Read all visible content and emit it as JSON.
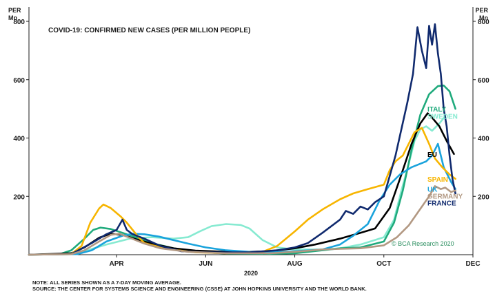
{
  "chart_data": {
    "type": "line",
    "title": "COVID-19: CONFIRMED NEW CASES (PER MILLION PEOPLE)",
    "xlabel": "2020",
    "y_unit_left": [
      "PER",
      "Mn"
    ],
    "y_unit_right": [
      "PER",
      "Mn"
    ],
    "ylim": [
      0,
      800
    ],
    "yticks": [
      200,
      400,
      600,
      800
    ],
    "xlim": [
      "2020-02-01",
      "2020-12-01"
    ],
    "xticks": [
      {
        "date": "2020-04-01",
        "label": "APR"
      },
      {
        "date": "2020-06-01",
        "label": "JUN"
      },
      {
        "date": "2020-08-01",
        "label": "AUG"
      },
      {
        "date": "2020-10-01",
        "label": "OCT"
      },
      {
        "date": "2020-12-01",
        "label": "DEC"
      }
    ],
    "grid": false,
    "legend": "right",
    "credit": "© BCA Research 2020",
    "series": [
      {
        "name": "SWEDEN",
        "color": "#86ead1",
        "points": [
          [
            "2020-02-01",
            0
          ],
          [
            "2020-02-25",
            3
          ],
          [
            "2020-03-10",
            12
          ],
          [
            "2020-03-25",
            35
          ],
          [
            "2020-04-10",
            55
          ],
          [
            "2020-04-25",
            60
          ],
          [
            "2020-05-10",
            55
          ],
          [
            "2020-05-20",
            60
          ],
          [
            "2020-05-28",
            80
          ],
          [
            "2020-06-05",
            98
          ],
          [
            "2020-06-15",
            105
          ],
          [
            "2020-06-25",
            102
          ],
          [
            "2020-07-01",
            90
          ],
          [
            "2020-07-10",
            50
          ],
          [
            "2020-07-20",
            25
          ],
          [
            "2020-08-01",
            18
          ],
          [
            "2020-08-20",
            18
          ],
          [
            "2020-09-01",
            22
          ],
          [
            "2020-09-15",
            35
          ],
          [
            "2020-10-01",
            60
          ],
          [
            "2020-10-08",
            120
          ],
          [
            "2020-10-13",
            220
          ],
          [
            "2020-10-18",
            310
          ],
          [
            "2020-10-22",
            390
          ],
          [
            "2020-10-26",
            430
          ],
          [
            "2020-10-30",
            440
          ],
          [
            "2020-11-03",
            425
          ],
          [
            "2020-11-08",
            450
          ],
          [
            "2020-11-12",
            475
          ]
        ]
      },
      {
        "name": "ITALY",
        "color": "#1faa7c",
        "points": [
          [
            "2020-02-01",
            0
          ],
          [
            "2020-02-22",
            2
          ],
          [
            "2020-03-01",
            15
          ],
          [
            "2020-03-10",
            55
          ],
          [
            "2020-03-16",
            85
          ],
          [
            "2020-03-21",
            93
          ],
          [
            "2020-03-28",
            88
          ],
          [
            "2020-04-05",
            75
          ],
          [
            "2020-04-15",
            58
          ],
          [
            "2020-04-25",
            40
          ],
          [
            "2020-05-10",
            22
          ],
          [
            "2020-05-25",
            10
          ],
          [
            "2020-06-15",
            4
          ],
          [
            "2020-07-15",
            3
          ],
          [
            "2020-08-01",
            5
          ],
          [
            "2020-08-20",
            15
          ],
          [
            "2020-09-01",
            22
          ],
          [
            "2020-09-15",
            25
          ],
          [
            "2020-10-01",
            45
          ],
          [
            "2020-10-08",
            110
          ],
          [
            "2020-10-14",
            220
          ],
          [
            "2020-10-20",
            360
          ],
          [
            "2020-10-26",
            480
          ],
          [
            "2020-11-01",
            550
          ],
          [
            "2020-11-07",
            578
          ],
          [
            "2020-11-11",
            580
          ],
          [
            "2020-11-15",
            560
          ],
          [
            "2020-11-19",
            500
          ]
        ]
      },
      {
        "name": "EU",
        "color": "#000000",
        "points": [
          [
            "2020-02-01",
            0
          ],
          [
            "2020-03-01",
            5
          ],
          [
            "2020-03-10",
            25
          ],
          [
            "2020-03-20",
            58
          ],
          [
            "2020-03-28",
            72
          ],
          [
            "2020-04-05",
            68
          ],
          [
            "2020-04-15",
            52
          ],
          [
            "2020-04-25",
            38
          ],
          [
            "2020-05-10",
            22
          ],
          [
            "2020-05-25",
            14
          ],
          [
            "2020-06-15",
            10
          ],
          [
            "2020-07-01",
            10
          ],
          [
            "2020-07-15",
            12
          ],
          [
            "2020-08-01",
            22
          ],
          [
            "2020-08-15",
            35
          ],
          [
            "2020-09-01",
            55
          ],
          [
            "2020-09-15",
            75
          ],
          [
            "2020-09-25",
            90
          ],
          [
            "2020-10-05",
            160
          ],
          [
            "2020-10-12",
            260
          ],
          [
            "2020-10-20",
            380
          ],
          [
            "2020-10-26",
            450
          ],
          [
            "2020-10-31",
            485
          ],
          [
            "2020-11-03",
            470
          ],
          [
            "2020-11-08",
            440
          ],
          [
            "2020-11-13",
            390
          ],
          [
            "2020-11-18",
            345
          ]
        ]
      },
      {
        "name": "UK",
        "color": "#1aa3dc",
        "points": [
          [
            "2020-02-01",
            0
          ],
          [
            "2020-03-05",
            2
          ],
          [
            "2020-03-15",
            15
          ],
          [
            "2020-03-25",
            45
          ],
          [
            "2020-04-05",
            65
          ],
          [
            "2020-04-12",
            72
          ],
          [
            "2020-04-20",
            70
          ],
          [
            "2020-04-30",
            62
          ],
          [
            "2020-05-10",
            50
          ],
          [
            "2020-05-20",
            38
          ],
          [
            "2020-06-01",
            25
          ],
          [
            "2020-06-15",
            15
          ],
          [
            "2020-07-01",
            10
          ],
          [
            "2020-07-20",
            9
          ],
          [
            "2020-08-01",
            12
          ],
          [
            "2020-08-20",
            18
          ],
          [
            "2020-09-01",
            35
          ],
          [
            "2020-09-10",
            65
          ],
          [
            "2020-09-20",
            105
          ],
          [
            "2020-09-28",
            185
          ],
          [
            "2020-10-05",
            240
          ],
          [
            "2020-10-12",
            275
          ],
          [
            "2020-10-20",
            300
          ],
          [
            "2020-10-30",
            320
          ],
          [
            "2020-11-03",
            340
          ],
          [
            "2020-11-07",
            380
          ],
          [
            "2020-11-11",
            300
          ],
          [
            "2020-11-16",
            250
          ],
          [
            "2020-11-19",
            225
          ]
        ]
      },
      {
        "name": "SPAIN",
        "color": "#f7b500",
        "points": [
          [
            "2020-02-01",
            0
          ],
          [
            "2020-03-01",
            2
          ],
          [
            "2020-03-08",
            30
          ],
          [
            "2020-03-14",
            110
          ],
          [
            "2020-03-20",
            158
          ],
          [
            "2020-03-23",
            172
          ],
          [
            "2020-03-28",
            160
          ],
          [
            "2020-04-04",
            130
          ],
          [
            "2020-04-08",
            110
          ],
          [
            "2020-04-12",
            85
          ],
          [
            "2020-04-16",
            60
          ],
          [
            "2020-04-20",
            40
          ],
          [
            "2020-05-05",
            20
          ],
          [
            "2020-05-25",
            8
          ],
          [
            "2020-06-15",
            5
          ],
          [
            "2020-07-10",
            10
          ],
          [
            "2020-07-20",
            30
          ],
          [
            "2020-08-01",
            80
          ],
          [
            "2020-08-10",
            120
          ],
          [
            "2020-08-20",
            155
          ],
          [
            "2020-09-01",
            190
          ],
          [
            "2020-09-10",
            210
          ],
          [
            "2020-09-20",
            225
          ],
          [
            "2020-10-01",
            240
          ],
          [
            "2020-10-05",
            290
          ],
          [
            "2020-10-09",
            320
          ],
          [
            "2020-10-14",
            340
          ],
          [
            "2020-10-22",
            420
          ],
          [
            "2020-10-27",
            435
          ],
          [
            "2020-11-01",
            380
          ],
          [
            "2020-11-05",
            330
          ],
          [
            "2020-11-10",
            300
          ],
          [
            "2020-11-15",
            275
          ],
          [
            "2020-11-19",
            260
          ]
        ]
      },
      {
        "name": "FRANCE",
        "color": "#102a6e",
        "points": [
          [
            "2020-02-01",
            0
          ],
          [
            "2020-03-01",
            2
          ],
          [
            "2020-03-15",
            40
          ],
          [
            "2020-03-25",
            70
          ],
          [
            "2020-04-01",
            85
          ],
          [
            "2020-04-05",
            120
          ],
          [
            "2020-04-08",
            85
          ],
          [
            "2020-04-12",
            70
          ],
          [
            "2020-04-20",
            55
          ],
          [
            "2020-05-01",
            30
          ],
          [
            "2020-05-15",
            12
          ],
          [
            "2020-06-01",
            8
          ],
          [
            "2020-07-01",
            8
          ],
          [
            "2020-07-20",
            15
          ],
          [
            "2020-08-01",
            25
          ],
          [
            "2020-08-10",
            40
          ],
          [
            "2020-08-20",
            75
          ],
          [
            "2020-09-01",
            120
          ],
          [
            "2020-09-05",
            150
          ],
          [
            "2020-09-10",
            140
          ],
          [
            "2020-09-15",
            165
          ],
          [
            "2020-09-20",
            155
          ],
          [
            "2020-09-25",
            180
          ],
          [
            "2020-10-01",
            200
          ],
          [
            "2020-10-05",
            270
          ],
          [
            "2020-10-09",
            340
          ],
          [
            "2020-10-13",
            430
          ],
          [
            "2020-10-17",
            520
          ],
          [
            "2020-10-21",
            620
          ],
          [
            "2020-10-24",
            780
          ],
          [
            "2020-10-27",
            700
          ],
          [
            "2020-10-30",
            640
          ],
          [
            "2020-11-01",
            785
          ],
          [
            "2020-11-03",
            720
          ],
          [
            "2020-11-05",
            790
          ],
          [
            "2020-11-07",
            690
          ],
          [
            "2020-11-09",
            620
          ],
          [
            "2020-11-11",
            500
          ],
          [
            "2020-11-13",
            440
          ],
          [
            "2020-11-15",
            340
          ],
          [
            "2020-11-17",
            260
          ],
          [
            "2020-11-19",
            210
          ]
        ]
      },
      {
        "name": "GERMANY",
        "color": "#b29882",
        "points": [
          [
            "2020-02-01",
            0
          ],
          [
            "2020-03-01",
            2
          ],
          [
            "2020-03-10",
            15
          ],
          [
            "2020-03-20",
            45
          ],
          [
            "2020-03-28",
            68
          ],
          [
            "2020-04-03",
            72
          ],
          [
            "2020-04-10",
            58
          ],
          [
            "2020-04-20",
            38
          ],
          [
            "2020-05-01",
            22
          ],
          [
            "2020-05-20",
            10
          ],
          [
            "2020-06-15",
            5
          ],
          [
            "2020-07-15",
            5
          ],
          [
            "2020-08-01",
            10
          ],
          [
            "2020-08-20",
            18
          ],
          [
            "2020-09-01",
            20
          ],
          [
            "2020-09-15",
            22
          ],
          [
            "2020-10-01",
            32
          ],
          [
            "2020-10-10",
            60
          ],
          [
            "2020-10-18",
            100
          ],
          [
            "2020-10-25",
            150
          ],
          [
            "2020-11-01",
            200
          ],
          [
            "2020-11-05",
            235
          ],
          [
            "2020-11-09",
            225
          ],
          [
            "2020-11-12",
            230
          ],
          [
            "2020-11-16",
            215
          ],
          [
            "2020-11-19",
            220
          ]
        ]
      }
    ]
  },
  "notes": [
    "NOTE: ALL SERIES SHOWN AS A 7-DAY MOVING AVERAGE.",
    "SOURCE: THE CENTER FOR SYSTEMS SCIENCE AND ENGINEERING (CSSE) AT JOHN HOPKINS UNIVERSITY AND THE WORLD BANK."
  ]
}
